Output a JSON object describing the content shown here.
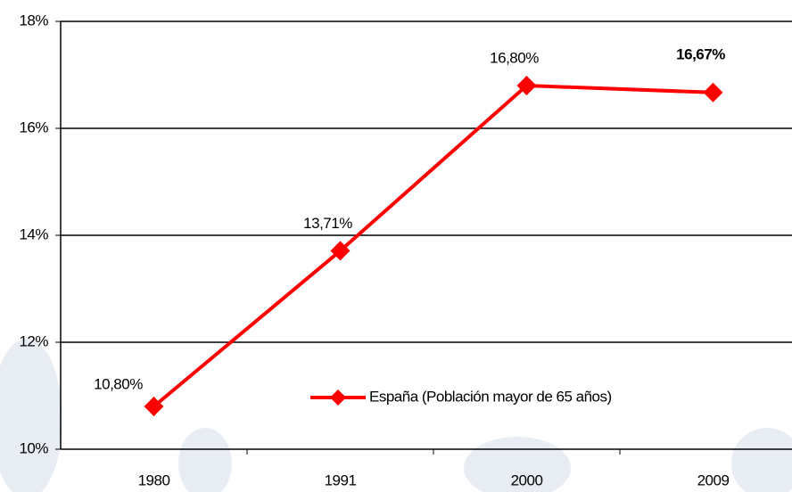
{
  "chart_data": {
    "type": "line",
    "categories": [
      "1980",
      "1991",
      "2000",
      "2009"
    ],
    "series": [
      {
        "name": "España (Población mayor de 65 años)",
        "color": "#ff0000",
        "values": [
          10.8,
          13.71,
          16.8,
          16.67
        ],
        "value_labels": [
          "10,80%",
          "13,71%",
          "16,80%",
          "16,67%"
        ],
        "bold_labels": [
          false,
          false,
          false,
          true
        ]
      }
    ],
    "ylim": [
      10,
      18
    ],
    "yticks": [
      {
        "value": 10,
        "label": "10%"
      },
      {
        "value": 12,
        "label": "12%"
      },
      {
        "value": 14,
        "label": "14%"
      },
      {
        "value": 16,
        "label": "16%"
      },
      {
        "value": 18,
        "label": "18%"
      }
    ],
    "grid": true
  }
}
